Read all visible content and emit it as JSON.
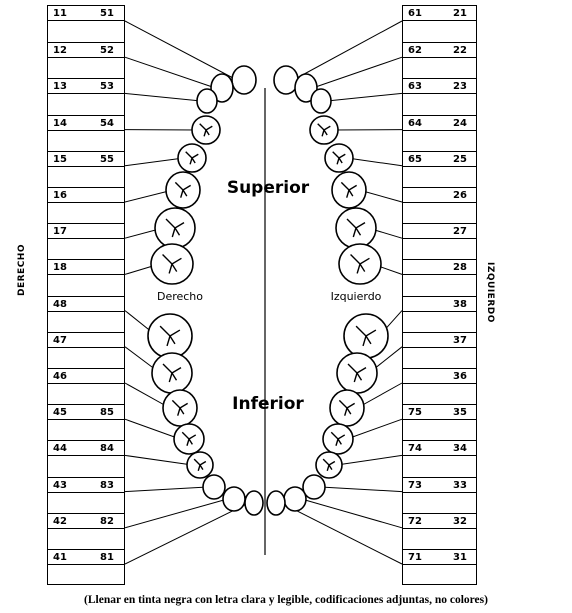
{
  "chart_labels": {
    "superior": "Superior",
    "inferior": "Inferior",
    "derecho": "Derecho",
    "izquierdo": "Izquierdo"
  },
  "side_labels": {
    "left": "DERECHO",
    "right": "IZQUIERDO"
  },
  "left_rows": [
    {
      "permanent": "11",
      "primary": "51"
    },
    {
      "permanent": "12",
      "primary": "52"
    },
    {
      "permanent": "13",
      "primary": "53"
    },
    {
      "permanent": "14",
      "primary": "54"
    },
    {
      "permanent": "15",
      "primary": "55"
    },
    {
      "permanent": "16",
      "primary": ""
    },
    {
      "permanent": "17",
      "primary": ""
    },
    {
      "permanent": "18",
      "primary": ""
    },
    {
      "permanent": "48",
      "primary": ""
    },
    {
      "permanent": "47",
      "primary": ""
    },
    {
      "permanent": "46",
      "primary": ""
    },
    {
      "permanent": "45",
      "primary": "85"
    },
    {
      "permanent": "44",
      "primary": "84"
    },
    {
      "permanent": "43",
      "primary": "83"
    },
    {
      "permanent": "42",
      "primary": "82"
    },
    {
      "permanent": "41",
      "primary": "81"
    }
  ],
  "right_rows": [
    {
      "primary": "61",
      "permanent": "21"
    },
    {
      "primary": "62",
      "permanent": "22"
    },
    {
      "primary": "63",
      "permanent": "23"
    },
    {
      "primary": "64",
      "permanent": "24"
    },
    {
      "primary": "65",
      "permanent": "25"
    },
    {
      "primary": "",
      "permanent": "26"
    },
    {
      "primary": "",
      "permanent": "27"
    },
    {
      "primary": "",
      "permanent": "28"
    },
    {
      "primary": "",
      "permanent": "38"
    },
    {
      "primary": "",
      "permanent": "37"
    },
    {
      "primary": "",
      "permanent": "36"
    },
    {
      "primary": "75",
      "permanent": "35"
    },
    {
      "primary": "74",
      "permanent": "34"
    },
    {
      "primary": "73",
      "permanent": "33"
    },
    {
      "primary": "72",
      "permanent": "32"
    },
    {
      "primary": "71",
      "permanent": "31"
    }
  ],
  "footer": "(Llenar en tinta negra con letra clara y legible, codificaciones adjuntas, no colores)"
}
